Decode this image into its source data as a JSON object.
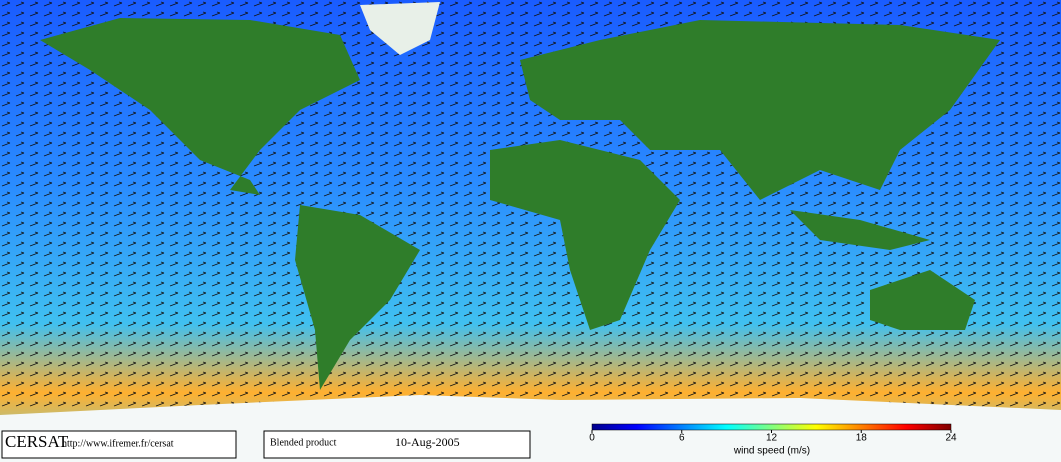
{
  "footer": {
    "logo": "CERSAT",
    "url": "http://www.ifremer.fr/cersat",
    "product": "Blended product",
    "date": "10-Aug-2005"
  },
  "colorbar": {
    "label": "wind speed (m/s)",
    "lim": [
      0,
      24
    ],
    "ticks": [
      0,
      6,
      12,
      18,
      24
    ],
    "colors": [
      "#00008c",
      "#0000ff",
      "#0080ff",
      "#00ffff",
      "#80ff80",
      "#ffff00",
      "#ff8000",
      "#ff0000",
      "#800000"
    ]
  }
}
